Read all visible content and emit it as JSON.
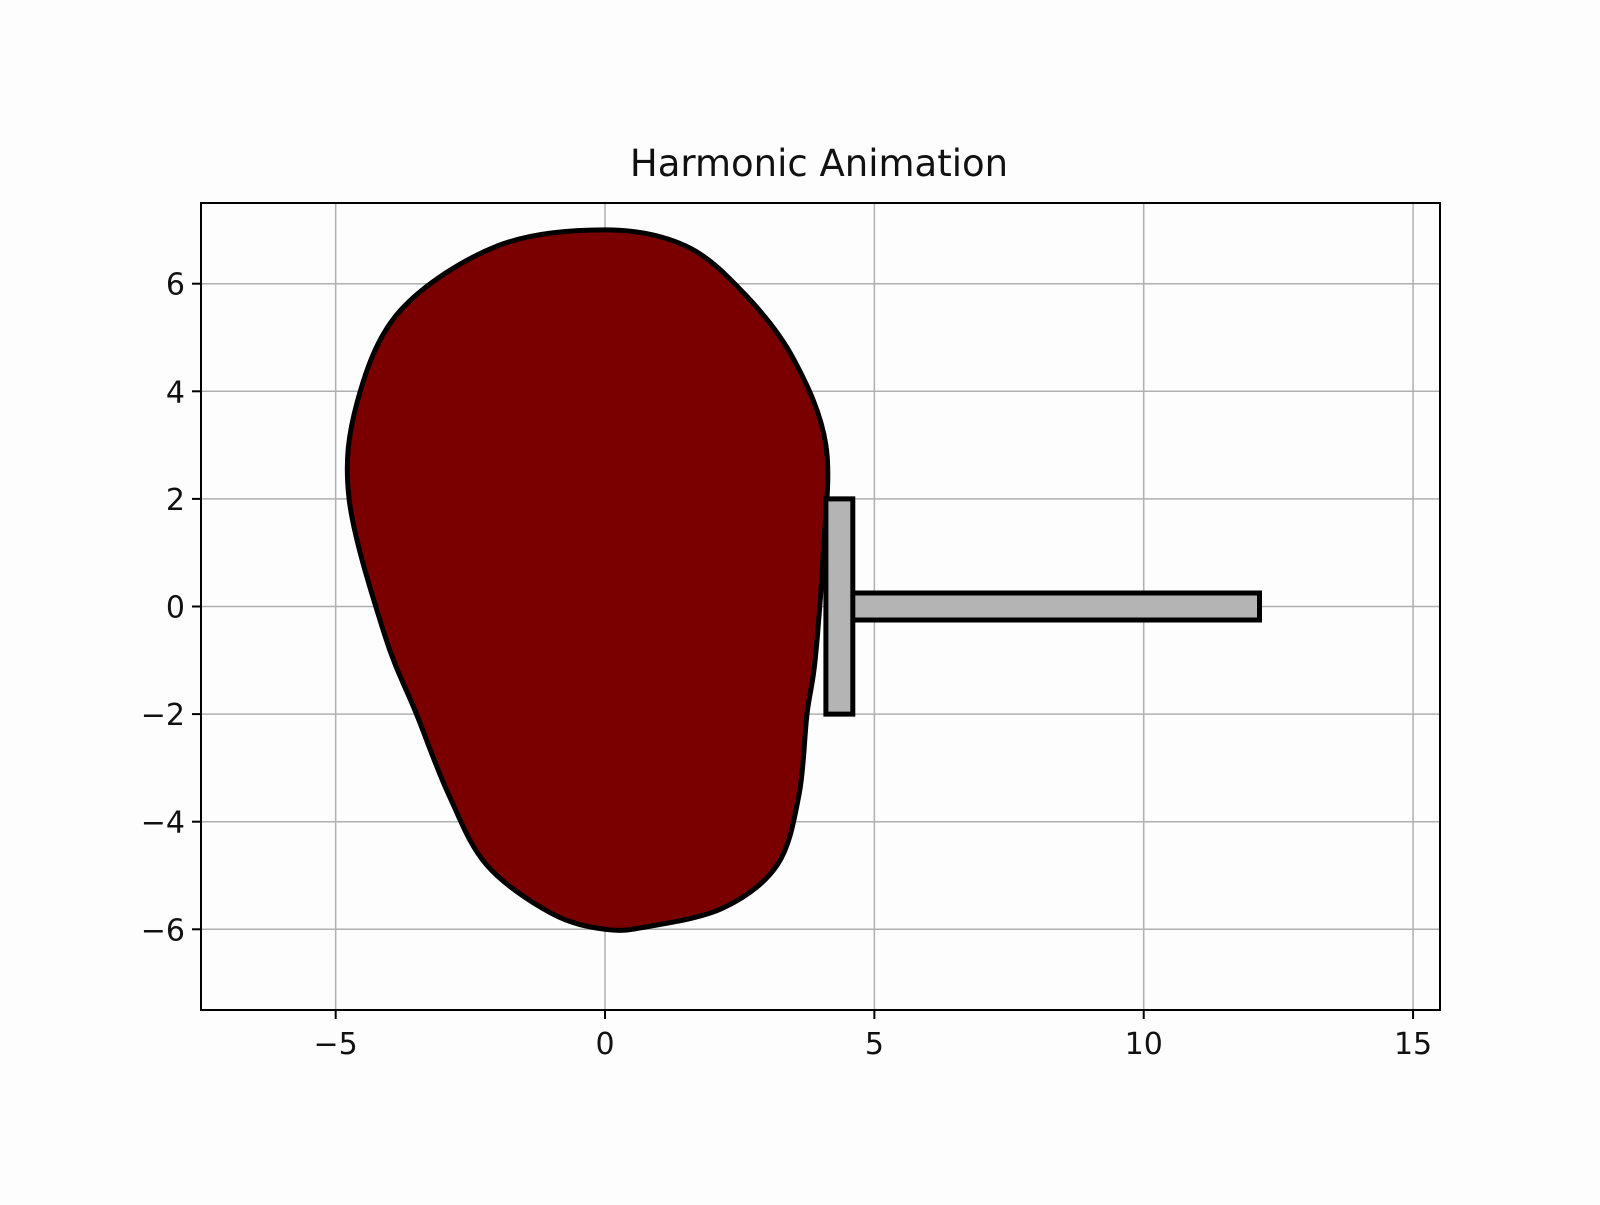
{
  "chart_data": {
    "type": "line",
    "title": "Harmonic Animation",
    "xlabel": "",
    "ylabel": "",
    "xlim": [
      -7.5,
      15.5
    ],
    "ylim": [
      -7.5,
      7.5
    ],
    "x_ticks": [
      -5,
      0,
      5,
      10,
      15
    ],
    "y_ticks": [
      -6,
      -4,
      -2,
      0,
      2,
      4,
      6
    ],
    "x_tick_labels": [
      "−5",
      "0",
      "5",
      "10",
      "15"
    ],
    "y_tick_labels": [
      "−6",
      "−4",
      "−2",
      "0",
      "2",
      "4",
      "6"
    ],
    "grid": true,
    "colors": {
      "background": "#fdfdfd",
      "cam_fill": "#7a0000",
      "follower_fill": "#b4b4b4",
      "outline": "#000000",
      "grid": "#b0b0b0"
    },
    "series": [
      {
        "kind": "cam-profile",
        "points": [
          [
            0.0,
            7.0
          ],
          [
            1.5,
            6.7
          ],
          [
            2.6,
            5.8
          ],
          [
            3.5,
            4.6
          ],
          [
            4.1,
            3.0
          ],
          [
            4.05,
            1.0
          ],
          [
            3.9,
            -1.0
          ],
          [
            3.75,
            -2.0
          ],
          [
            3.6,
            -3.5
          ],
          [
            3.2,
            -4.8
          ],
          [
            2.2,
            -5.6
          ],
          [
            0.8,
            -5.95
          ],
          [
            0.0,
            -6.0
          ],
          [
            -1.0,
            -5.7
          ],
          [
            -2.2,
            -4.8
          ],
          [
            -2.9,
            -3.5
          ],
          [
            -3.5,
            -2.0
          ],
          [
            -4.1,
            -0.5
          ],
          [
            -4.75,
            2.0
          ],
          [
            -4.6,
            3.8
          ],
          [
            -3.8,
            5.5
          ],
          [
            -2.0,
            6.7
          ]
        ]
      },
      {
        "kind": "follower-stem",
        "points": [
          [
            4.55,
            0.25
          ],
          [
            12.15,
            0.25
          ],
          [
            12.15,
            -0.25
          ],
          [
            4.55,
            -0.25
          ]
        ]
      },
      {
        "kind": "follower-plate",
        "points": [
          [
            4.1,
            2.0
          ],
          [
            4.6,
            2.0
          ],
          [
            4.6,
            -2.0
          ],
          [
            4.1,
            -2.0
          ]
        ]
      }
    ]
  }
}
